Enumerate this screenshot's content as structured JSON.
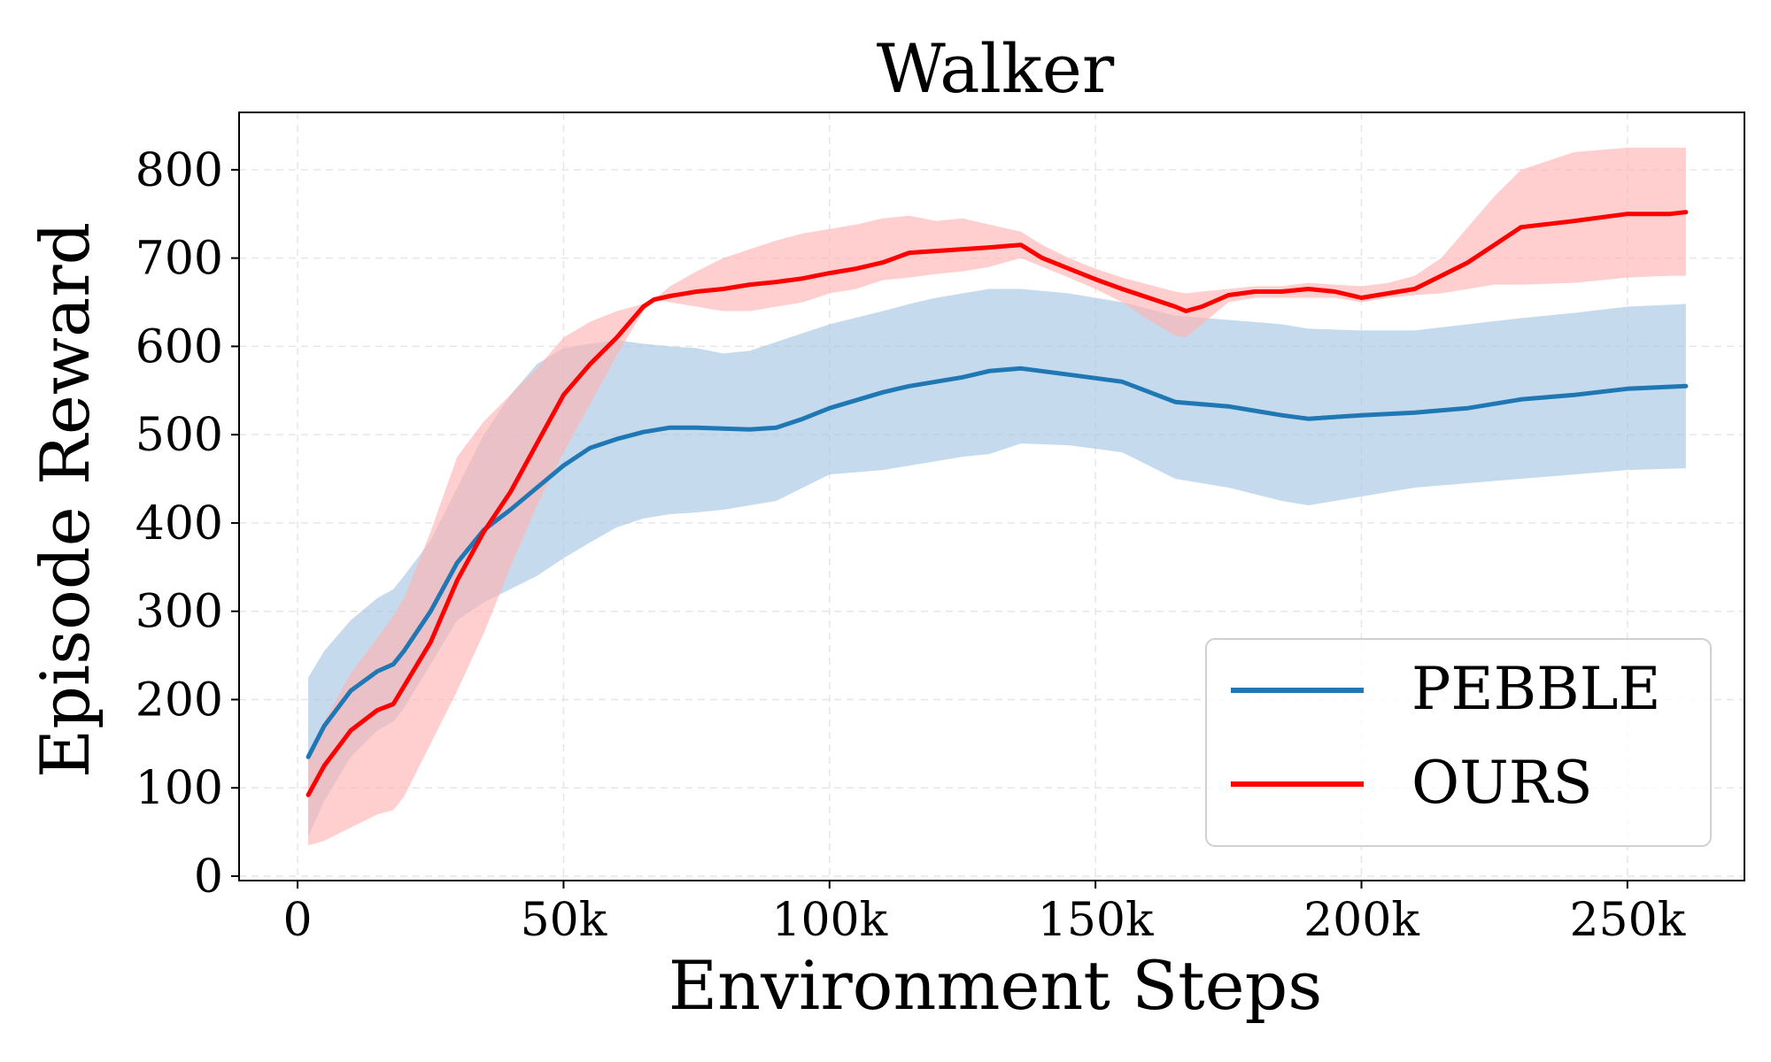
{
  "chart_data": {
    "type": "line",
    "title": "Walker",
    "xlabel": "Environment Steps",
    "ylabel": "Episode Reward",
    "xlim": [
      -11000,
      272000
    ],
    "ylim": [
      -5,
      865
    ],
    "x_ticks": [
      {
        "value": 0,
        "label": "0"
      },
      {
        "value": 50000,
        "label": "50k"
      },
      {
        "value": 100000,
        "label": "100k"
      },
      {
        "value": 150000,
        "label": "150k"
      },
      {
        "value": 200000,
        "label": "200k"
      },
      {
        "value": 250000,
        "label": "250k"
      }
    ],
    "y_ticks": [
      {
        "value": 0,
        "label": "0"
      },
      {
        "value": 100,
        "label": "100"
      },
      {
        "value": 200,
        "label": "200"
      },
      {
        "value": 300,
        "label": "300"
      },
      {
        "value": 400,
        "label": "400"
      },
      {
        "value": 500,
        "label": "500"
      },
      {
        "value": 600,
        "label": "600"
      },
      {
        "value": 700,
        "label": "700"
      },
      {
        "value": 800,
        "label": "800"
      }
    ],
    "grid": true,
    "legend_position": "bottom-right",
    "series": [
      {
        "name": "PEBBLE",
        "color": "#1f77b4",
        "band_color": "#a6c8e4",
        "x": [
          2000,
          5000,
          10000,
          15000,
          18000,
          20000,
          25000,
          30000,
          35000,
          40000,
          45000,
          50000,
          55000,
          60000,
          65000,
          70000,
          75000,
          80000,
          85000,
          90000,
          95000,
          100000,
          110000,
          115000,
          120000,
          125000,
          130000,
          136000,
          145000,
          155000,
          165000,
          175000,
          185000,
          190000,
          200000,
          210000,
          220000,
          230000,
          240000,
          250000,
          261000
        ],
        "mean": [
          135,
          170,
          210,
          232,
          240,
          255,
          300,
          355,
          392,
          415,
          440,
          465,
          485,
          495,
          503,
          508,
          508,
          507,
          506,
          508,
          518,
          530,
          548,
          555,
          560,
          565,
          572,
          575,
          568,
          560,
          537,
          532,
          522,
          518,
          522,
          525,
          530,
          540,
          545,
          552,
          555
        ],
        "upper": [
          225,
          255,
          290,
          315,
          325,
          340,
          380,
          440,
          500,
          545,
          580,
          598,
          603,
          607,
          603,
          600,
          598,
          592,
          595,
          605,
          615,
          625,
          640,
          648,
          655,
          660,
          665,
          665,
          660,
          650,
          635,
          630,
          625,
          620,
          618,
          618,
          625,
          632,
          638,
          645,
          648
        ],
        "lower": [
          45,
          85,
          135,
          165,
          175,
          190,
          240,
          290,
          310,
          325,
          340,
          360,
          378,
          395,
          405,
          410,
          412,
          415,
          420,
          425,
          440,
          455,
          460,
          465,
          470,
          475,
          478,
          490,
          488,
          480,
          450,
          440,
          425,
          420,
          430,
          440,
          445,
          450,
          455,
          460,
          462
        ]
      },
      {
        "name": "OURS",
        "color": "#ff0000",
        "band_color": "#ffb3b3",
        "x": [
          2000,
          5000,
          10000,
          15000,
          18000,
          20000,
          25000,
          30000,
          35000,
          40000,
          45000,
          50000,
          55000,
          60000,
          65000,
          67000,
          70000,
          75000,
          80000,
          85000,
          90000,
          95000,
          100000,
          105000,
          110000,
          115000,
          120000,
          125000,
          130000,
          136000,
          140000,
          145000,
          150000,
          155000,
          160000,
          165000,
          167000,
          170000,
          175000,
          180000,
          185000,
          190000,
          195000,
          200000,
          205000,
          210000,
          215000,
          220000,
          225000,
          230000,
          240000,
          250000,
          258000,
          261000
        ],
        "mean": [
          92,
          125,
          165,
          188,
          195,
          215,
          265,
          335,
          390,
          435,
          490,
          545,
          580,
          610,
          645,
          653,
          657,
          662,
          665,
          670,
          673,
          677,
          683,
          688,
          695,
          706,
          708,
          710,
          712,
          715,
          700,
          688,
          676,
          665,
          655,
          645,
          640,
          645,
          658,
          662,
          662,
          665,
          662,
          655,
          660,
          665,
          680,
          695,
          715,
          735,
          742,
          750,
          750,
          752
        ],
        "upper": [
          140,
          175,
          230,
          270,
          295,
          315,
          390,
          475,
          515,
          545,
          575,
          610,
          628,
          640,
          648,
          653,
          668,
          685,
          700,
          710,
          720,
          728,
          733,
          738,
          745,
          748,
          742,
          745,
          738,
          730,
          715,
          700,
          688,
          678,
          670,
          662,
          660,
          662,
          665,
          668,
          668,
          672,
          670,
          668,
          672,
          680,
          700,
          735,
          770,
          800,
          820,
          825,
          825,
          825
        ],
        "lower": [
          35,
          40,
          55,
          70,
          75,
          90,
          150,
          210,
          275,
          350,
          420,
          480,
          535,
          590,
          640,
          653,
          650,
          645,
          640,
          640,
          645,
          650,
          660,
          665,
          675,
          678,
          682,
          685,
          690,
          700,
          690,
          678,
          665,
          650,
          630,
          612,
          610,
          625,
          650,
          655,
          655,
          655,
          655,
          650,
          655,
          658,
          660,
          665,
          670,
          670,
          672,
          678,
          680,
          680
        ]
      }
    ]
  }
}
